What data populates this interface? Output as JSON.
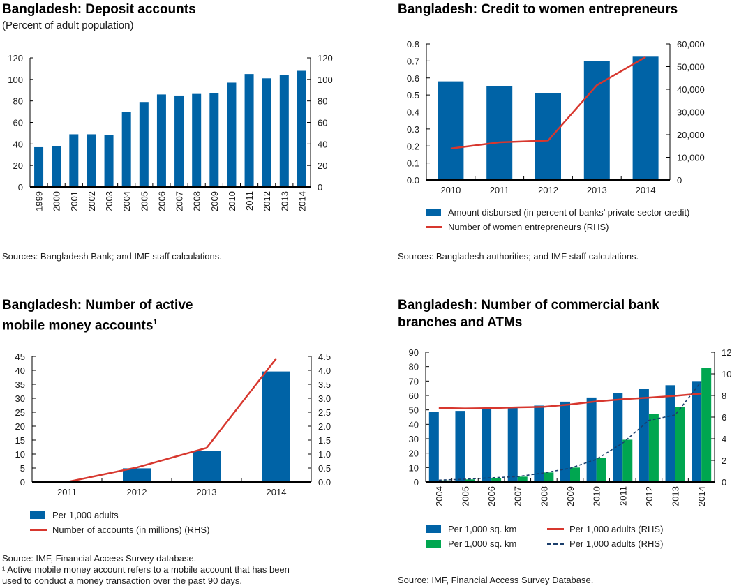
{
  "colors": {
    "blue": "#0063a6",
    "green": "#00a650",
    "red": "#d7372e",
    "navy": "#1b3e6b"
  },
  "chart_data": [
    {
      "id": "deposit",
      "type": "bar",
      "title": "Bangladesh: Deposit accounts",
      "subtitle": "(Percent of adult population)",
      "categories": [
        "1999",
        "2000",
        "2001",
        "2002",
        "2003",
        "2004",
        "2005",
        "2006",
        "2007",
        "2008",
        "2009",
        "2010",
        "2011",
        "2012",
        "2013",
        "2014"
      ],
      "series": [
        {
          "name": "Deposit accounts",
          "values": [
            37,
            38,
            49,
            49,
            48,
            70,
            79,
            86,
            85,
            86.5,
            87,
            97,
            105,
            101,
            104,
            108
          ]
        }
      ],
      "ylim": [
        0,
        120
      ],
      "yticks": [
        0,
        20,
        40,
        60,
        80,
        100,
        120
      ],
      "ylim_right": [
        0,
        120
      ],
      "yticks_right": [
        0,
        20,
        40,
        60,
        80,
        100,
        120
      ],
      "xlabel": "",
      "ylabel": "",
      "source": "Sources: Bangladesh Bank; and IMF staff calculations."
    },
    {
      "id": "credit",
      "type": "bar",
      "title": "Bangladesh: Credit to women entrepreneurs",
      "categories": [
        "2010",
        "2011",
        "2012",
        "2013",
        "2014"
      ],
      "series": [
        {
          "name": "Amount disbursed (in percent of banks’ private sector credit)",
          "kind": "bar",
          "axis": "left",
          "values": [
            0.58,
            0.55,
            0.51,
            0.7,
            0.725
          ]
        },
        {
          "name": "Number of women entrepreneurs (RHS)",
          "kind": "line",
          "axis": "right",
          "values": [
            13900,
            16600,
            17400,
            41800,
            54200
          ]
        }
      ],
      "ylim": [
        0,
        0.8
      ],
      "yticks": [
        "0.0",
        "0.1",
        "0.2",
        "0.3",
        "0.4",
        "0.5",
        "0.6",
        "0.7",
        "0.8"
      ],
      "ylim_right": [
        0,
        60000
      ],
      "yticks_right": [
        "0",
        "10,000",
        "20,000",
        "30,000",
        "40,000",
        "50,000",
        "60,000"
      ],
      "legend": [
        "Amount disbursed (in percent of banks’ private sector credit)",
        "Number of women entrepreneurs (RHS)"
      ],
      "legend_position": "bottom",
      "source": "Sources: Bangladesh authorities; and IMF staff calculations."
    },
    {
      "id": "mobile",
      "type": "bar",
      "title_line1": "Bangladesh: Number of active",
      "title_line2": "mobile money accounts",
      "title_footnote": "1",
      "categories": [
        "2011",
        "2012",
        "2013",
        "2014"
      ],
      "series": [
        {
          "name": "Per 1,000 adults",
          "kind": "bar",
          "axis": "left",
          "values": [
            0,
            4.9,
            11.1,
            39.6
          ]
        },
        {
          "name": "Number of accounts (in millions) (RHS)",
          "kind": "line",
          "axis": "right",
          "values": [
            0,
            0.52,
            1.22,
            4.43
          ]
        }
      ],
      "ylim": [
        0,
        45
      ],
      "yticks": [
        "0",
        "5",
        "10",
        "15",
        "20",
        "25",
        "30",
        "35",
        "40",
        "45"
      ],
      "ylim_right": [
        0,
        4.5
      ],
      "yticks_right": [
        "0.0",
        "0.5",
        "1.0",
        "1.5",
        "2.0",
        "2.5",
        "3.0",
        "3.5",
        "4.0",
        "4.5"
      ],
      "legend": [
        "Per 1,000 adults",
        "Number of accounts (in millions) (RHS)"
      ],
      "legend_position": "bottom",
      "source": "Source: IMF, Financial Access Survey database.",
      "footnote_line1": "¹ Active mobile money account refers to a mobile account that has been",
      "footnote_line2": "used to conduct a money transaction over the past 90 days."
    },
    {
      "id": "branches",
      "type": "bar",
      "title_line1": "Bangladesh: Number of commercial bank",
      "title_line2": "branches and ATMs",
      "categories": [
        "2004",
        "2005",
        "2006",
        "2007",
        "2008",
        "2009",
        "2010",
        "2011",
        "2012",
        "2013",
        "2014"
      ],
      "series": [
        {
          "name": "Per 1,000 sq. km",
          "kind": "bar",
          "color": "blue",
          "axis": "left",
          "values": [
            48.5,
            49.3,
            51,
            51.8,
            53,
            55.7,
            58.6,
            61.7,
            64.4,
            67.1,
            70
          ]
        },
        {
          "name": "Per 1,000 sq. km",
          "kind": "bar",
          "color": "green",
          "axis": "left",
          "values": [
            1.1,
            1.8,
            2.7,
            3.7,
            6.6,
            10,
            16.6,
            29.3,
            47,
            52.2,
            79.2
          ]
        },
        {
          "name": "Per 1,000 adults (RHS)",
          "kind": "line",
          "color": "red",
          "axis": "right",
          "values": [
            6.85,
            6.8,
            6.83,
            6.9,
            6.95,
            7.17,
            7.45,
            7.65,
            7.8,
            7.97,
            8.18
          ]
        },
        {
          "name": "Per 1,000 adults (RHS)",
          "kind": "dashed",
          "color": "navy",
          "axis": "right",
          "values": [
            0.17,
            0.26,
            0.39,
            0.5,
            0.84,
            1.27,
            2.1,
            3.6,
            5.7,
            6.2,
            9.3
          ]
        }
      ],
      "ylim": [
        0,
        90
      ],
      "yticks": [
        "0",
        "10",
        "20",
        "30",
        "40",
        "50",
        "60",
        "70",
        "80",
        "90"
      ],
      "ylim_right": [
        0,
        12
      ],
      "yticks_right": [
        "0",
        "2",
        "4",
        "6",
        "8",
        "10",
        "12"
      ],
      "legend": [
        "Per 1,000 sq. km",
        "Per 1,000 sq. km",
        "Per 1,000 adults (RHS)",
        "Per 1,000 adults (RHS)"
      ],
      "legend_position": "bottom",
      "source": "Source: IMF, Financial Access Survey Database."
    }
  ]
}
